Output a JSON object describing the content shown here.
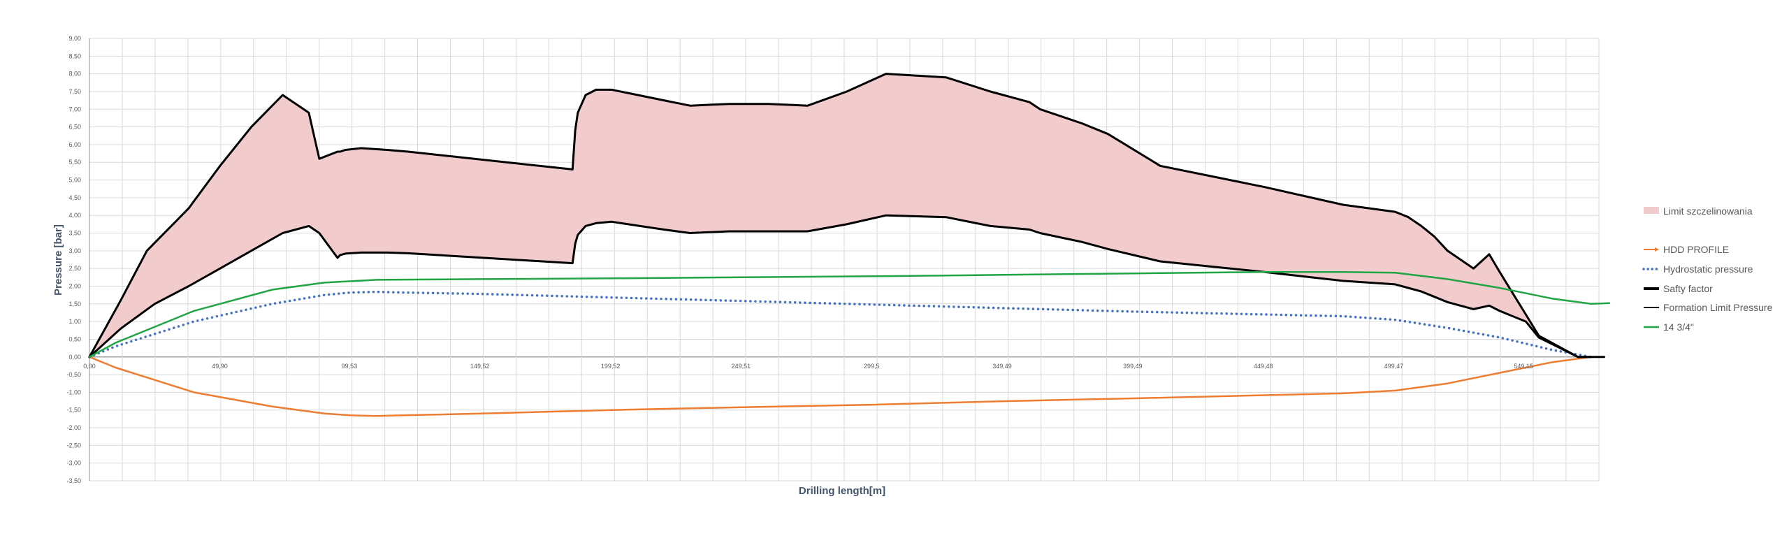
{
  "chart_data": {
    "type": "line",
    "title": "",
    "xlabel": "Drilling length[m]",
    "ylabel": "Pressure [bar]",
    "xlim": [
      0,
      578
    ],
    "ylim": [
      -3.5,
      9.0
    ],
    "grid": true,
    "legend_position": "right",
    "x_ticks": [
      {
        "value": 0,
        "label": "0,00"
      },
      {
        "value": 49.9,
        "label": "49,90"
      },
      {
        "value": 99.53,
        "label": "99,53"
      },
      {
        "value": 149.52,
        "label": "149,52"
      },
      {
        "value": 199.52,
        "label": "199,52"
      },
      {
        "value": 249.51,
        "label": "249,51"
      },
      {
        "value": 299.5,
        "label": "299,5"
      },
      {
        "value": 349.49,
        "label": "349,49"
      },
      {
        "value": 399.49,
        "label": "399,49"
      },
      {
        "value": 449.48,
        "label": "449,48"
      },
      {
        "value": 499.47,
        "label": "499,47"
      },
      {
        "value": 549.15,
        "label": "549,15"
      }
    ],
    "y_ticks": [
      {
        "value": 9.0,
        "label": "9,00"
      },
      {
        "value": 8.5,
        "label": "8,50"
      },
      {
        "value": 8.0,
        "label": "8,00"
      },
      {
        "value": 7.5,
        "label": "7,50"
      },
      {
        "value": 7.0,
        "label": "7,00"
      },
      {
        "value": 6.5,
        "label": "6,50"
      },
      {
        "value": 6.0,
        "label": "6,00"
      },
      {
        "value": 5.5,
        "label": "5,50"
      },
      {
        "value": 5.0,
        "label": "5,00"
      },
      {
        "value": 4.5,
        "label": "4,50"
      },
      {
        "value": 4.0,
        "label": "4,00"
      },
      {
        "value": 3.5,
        "label": "3,50"
      },
      {
        "value": 3.0,
        "label": "3,00"
      },
      {
        "value": 2.5,
        "label": "2,50"
      },
      {
        "value": 2.0,
        "label": "2,00"
      },
      {
        "value": 1.5,
        "label": "1,50"
      },
      {
        "value": 1.0,
        "label": "1,00"
      },
      {
        "value": 0.5,
        "label": "0,50"
      },
      {
        "value": 0.0,
        "label": "0,00"
      },
      {
        "value": -0.5,
        "label": "-0,50"
      },
      {
        "value": -1.0,
        "label": "-1,00"
      },
      {
        "value": -1.5,
        "label": "-1,50"
      },
      {
        "value": -2.0,
        "label": "-2,00"
      },
      {
        "value": -2.5,
        "label": "-2,50"
      },
      {
        "value": -3.0,
        "label": "-3,00"
      },
      {
        "value": -3.5,
        "label": "-3,50"
      }
    ],
    "series": [
      {
        "name": "Limit szczelinowania",
        "kind": "area",
        "color": "#f2cccc",
        "x": [
          0,
          12,
          22,
          38,
          40,
          50,
          62,
          74,
          84,
          88,
          95,
          96,
          98,
          104,
          114,
          122,
          185,
          186,
          187,
          190,
          194,
          200,
          210,
          220,
          230,
          245,
          260,
          275,
          290,
          305,
          328,
          345,
          360,
          364,
          380,
          390,
          410,
          430,
          450,
          480,
          500,
          505,
          510,
          515,
          520,
          530,
          536,
          540,
          550,
          555,
          570,
          575
        ],
        "y": [
          0,
          1.6,
          3.0,
          4.2,
          4.4,
          5.4,
          6.5,
          7.4,
          6.9,
          5.6,
          5.8,
          5.8,
          5.85,
          5.9,
          5.85,
          5.8,
          5.3,
          6.4,
          6.9,
          7.4,
          7.55,
          7.55,
          7.4,
          7.25,
          7.1,
          7.15,
          7.15,
          7.1,
          7.5,
          8.0,
          7.9,
          7.5,
          7.2,
          7.0,
          6.6,
          6.3,
          5.4,
          5.1,
          4.8,
          4.3,
          4.1,
          3.95,
          3.7,
          3.4,
          3.0,
          2.5,
          2.9,
          2.4,
          1.2,
          0.6,
          0,
          0
        ]
      },
      {
        "name": "HDD PROFILE",
        "kind": "line",
        "color": "#ed7d31",
        "x": [
          0,
          10,
          40,
          70,
          90,
          100,
          110,
          120,
          150,
          200,
          250,
          300,
          350,
          400,
          450,
          480,
          500,
          520,
          540,
          560,
          575,
          580
        ],
        "y": [
          0,
          -0.3,
          -1.0,
          -1.4,
          -1.6,
          -1.65,
          -1.67,
          -1.65,
          -1.6,
          -1.5,
          -1.42,
          -1.35,
          -1.25,
          -1.17,
          -1.08,
          -1.03,
          -0.95,
          -0.75,
          -0.45,
          -0.15,
          0,
          0
        ]
      },
      {
        "name": "Hydrostatic pressure",
        "kind": "dotted",
        "color": "#4472c4",
        "x": [
          0,
          10,
          40,
          70,
          90,
          100,
          110,
          120,
          150,
          200,
          250,
          300,
          350,
          400,
          450,
          480,
          500,
          520,
          540,
          560,
          575
        ],
        "y": [
          0,
          0.3,
          1.0,
          1.5,
          1.75,
          1.82,
          1.84,
          1.82,
          1.78,
          1.68,
          1.58,
          1.48,
          1.38,
          1.28,
          1.2,
          1.15,
          1.05,
          0.82,
          0.55,
          0.2,
          0
        ]
      },
      {
        "name": "Safty factor",
        "kind": "line",
        "color": "#000000",
        "x": [
          0,
          12,
          25,
          38,
          50,
          62,
          74,
          84,
          88,
          95,
          96,
          98,
          104,
          114,
          122,
          185,
          186,
          187,
          190,
          194,
          200,
          220,
          230,
          245,
          260,
          275,
          290,
          305,
          328,
          345,
          360,
          364,
          380,
          390,
          410,
          430,
          450,
          480,
          500,
          505,
          510,
          515,
          520,
          530,
          536,
          540,
          550,
          555,
          570,
          575,
          580
        ],
        "y": [
          0,
          0.8,
          1.5,
          2.0,
          2.5,
          3.0,
          3.5,
          3.7,
          3.5,
          2.8,
          2.88,
          2.92,
          2.95,
          2.95,
          2.93,
          2.65,
          3.2,
          3.45,
          3.7,
          3.78,
          3.82,
          3.6,
          3.5,
          3.55,
          3.55,
          3.55,
          3.75,
          4.0,
          3.95,
          3.7,
          3.6,
          3.5,
          3.25,
          3.05,
          2.7,
          2.55,
          2.4,
          2.15,
          2.05,
          1.95,
          1.85,
          1.7,
          1.55,
          1.35,
          1.45,
          1.3,
          1.0,
          0.55,
          0,
          0,
          0
        ]
      },
      {
        "name": "Formation Limit Pressure",
        "kind": "line",
        "color": "#000000",
        "x": [
          0,
          12,
          22,
          38,
          40,
          50,
          62,
          74,
          84,
          88,
          95,
          96,
          98,
          104,
          114,
          122,
          185,
          186,
          187,
          190,
          194,
          200,
          210,
          220,
          230,
          245,
          260,
          275,
          290,
          305,
          328,
          345,
          360,
          364,
          380,
          390,
          410,
          430,
          450,
          480,
          500,
          505,
          510,
          515,
          520,
          530,
          536,
          540,
          550,
          555,
          570,
          575
        ],
        "y": [
          0,
          1.6,
          3.0,
          4.2,
          4.4,
          5.4,
          6.5,
          7.4,
          6.9,
          5.6,
          5.8,
          5.8,
          5.85,
          5.9,
          5.85,
          5.8,
          5.3,
          6.4,
          6.9,
          7.4,
          7.55,
          7.55,
          7.4,
          7.25,
          7.1,
          7.15,
          7.15,
          7.1,
          7.5,
          8.0,
          7.9,
          7.5,
          7.2,
          7.0,
          6.6,
          6.3,
          5.4,
          5.1,
          4.8,
          4.3,
          4.1,
          3.95,
          3.7,
          3.4,
          3.0,
          2.5,
          2.9,
          2.4,
          1.2,
          0.6,
          0,
          0
        ]
      },
      {
        "name": "14 3/4\"",
        "kind": "line",
        "color": "#21a544",
        "x": [
          0,
          10,
          40,
          70,
          90,
          110,
          150,
          200,
          250,
          300,
          350,
          400,
          450,
          480,
          500,
          520,
          540,
          560,
          575,
          582
        ],
        "y": [
          0,
          0.4,
          1.3,
          1.9,
          2.1,
          2.18,
          2.2,
          2.22,
          2.25,
          2.28,
          2.32,
          2.36,
          2.4,
          2.4,
          2.38,
          2.2,
          1.95,
          1.65,
          1.5,
          1.52
        ]
      }
    ]
  },
  "legend": {
    "items": [
      {
        "label": "Limit szczelinowania",
        "symbol": "area",
        "color": "#f2cccc"
      },
      {
        "label": "HDD PROFILE",
        "symbol": "arrow",
        "color": "#ed7d31"
      },
      {
        "label": "Hydrostatic pressure",
        "symbol": "dotted",
        "color": "#4472c4"
      },
      {
        "label": "Safty factor",
        "symbol": "thick",
        "color": "#000000"
      },
      {
        "label": "Formation Limit Pressure",
        "symbol": "thin",
        "color": "#000000"
      },
      {
        "label": "14 3/4\"",
        "symbol": "line",
        "color": "#21a544"
      }
    ]
  }
}
